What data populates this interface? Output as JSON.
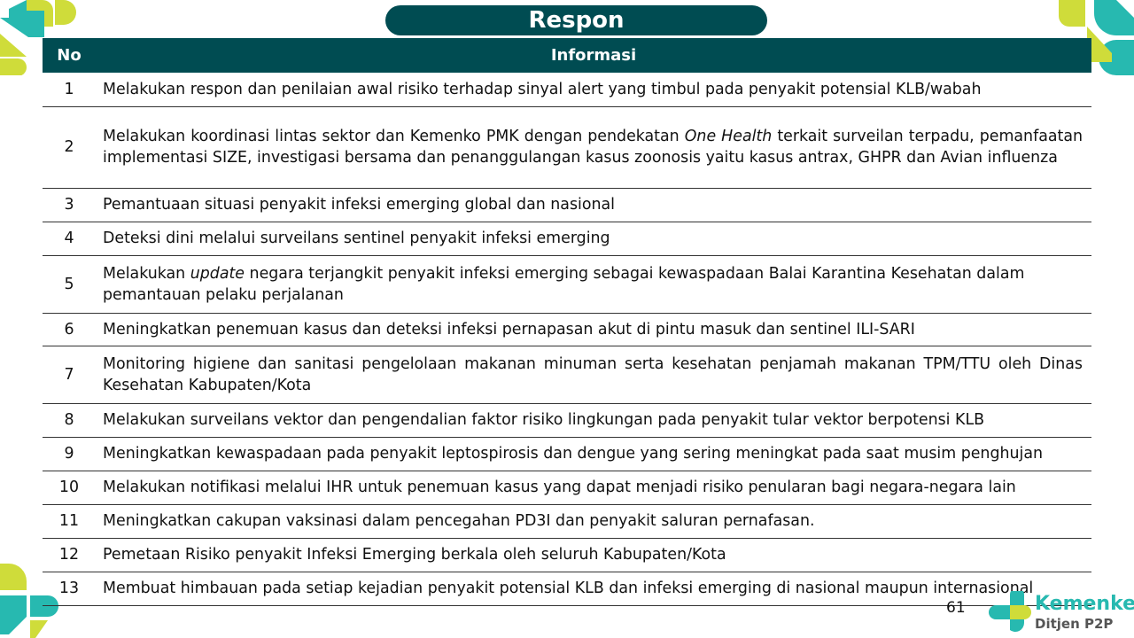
{
  "title": "Respon",
  "header": {
    "no": "No",
    "info": "Informasi"
  },
  "rows": [
    {
      "no": "1",
      "text": "Melakukan respon dan penilaian awal risiko terhadap sinyal alert yang timbul pada penyakit potensial KLB/wabah"
    },
    {
      "no": "2",
      "pre": "Melakukan koordinasi lintas sektor dan Kemenko PMK dengan pendekatan ",
      "em": "One Health",
      "post": " terkait surveilan terpadu, pemanfaatan implementasi SIZE, investigasi bersama dan penanggulangan kasus zoonosis yaitu kasus antrax, GHPR dan Avian influenza"
    },
    {
      "no": "3",
      "text": "Pemantuaan situasi penyakit infeksi emerging global dan nasional"
    },
    {
      "no": "4",
      "text": "Deteksi dini melalui surveilans sentinel penyakit infeksi emerging"
    },
    {
      "no": "5",
      "pre": "Melakukan ",
      "em": "update",
      "post": " negara terjangkit penyakit infeksi emerging sebagai kewaspadaan Balai Karantina Kesehatan dalam pemantauan pelaku perjalanan"
    },
    {
      "no": "6",
      "text": "Meningkatkan penemuan kasus dan deteksi infeksi pernapasan akut di pintu masuk dan sentinel ILI-SARI"
    },
    {
      "no": "7",
      "text": "Monitoring higiene dan sanitasi pengelolaan makanan minuman serta kesehatan penjamah makanan TPM/TTU oleh Dinas Kesehatan Kabupaten/Kota"
    },
    {
      "no": "8",
      "text": "Melakukan surveilans vektor dan pengendalian faktor risiko lingkungan pada penyakit tular vektor berpotensi KLB"
    },
    {
      "no": "9",
      "text": "Meningkatkan kewaspadaan pada penyakit leptospirosis dan dengue yang sering meningkat pada saat musim penghujan"
    },
    {
      "no": "10",
      "text": "Melakukan notifikasi melalui IHR untuk penemuan kasus yang dapat menjadi risiko penularan bagi negara-negara lain"
    },
    {
      "no": "11",
      "text": "Meningkatkan cakupan vaksinasi dalam pencegahan PD3I dan penyakit saluran pernafasan."
    },
    {
      "no": "12",
      "text": "Pemetaan Risiko penyakit Infeksi Emerging berkala oleh seluruh Kabupaten/Kota"
    },
    {
      "no": "13",
      "text": "Membuat himbauan pada setiap kejadian penyakit potensial KLB dan infeksi emerging di nasional maupun internasional"
    }
  ],
  "page_number": "61",
  "brand": {
    "name": "Kemenkes",
    "sub": "Ditjen P2P"
  },
  "colors": {
    "header": "#004c52",
    "teal": "#27b9b0",
    "lime": "#cfdc3a"
  }
}
